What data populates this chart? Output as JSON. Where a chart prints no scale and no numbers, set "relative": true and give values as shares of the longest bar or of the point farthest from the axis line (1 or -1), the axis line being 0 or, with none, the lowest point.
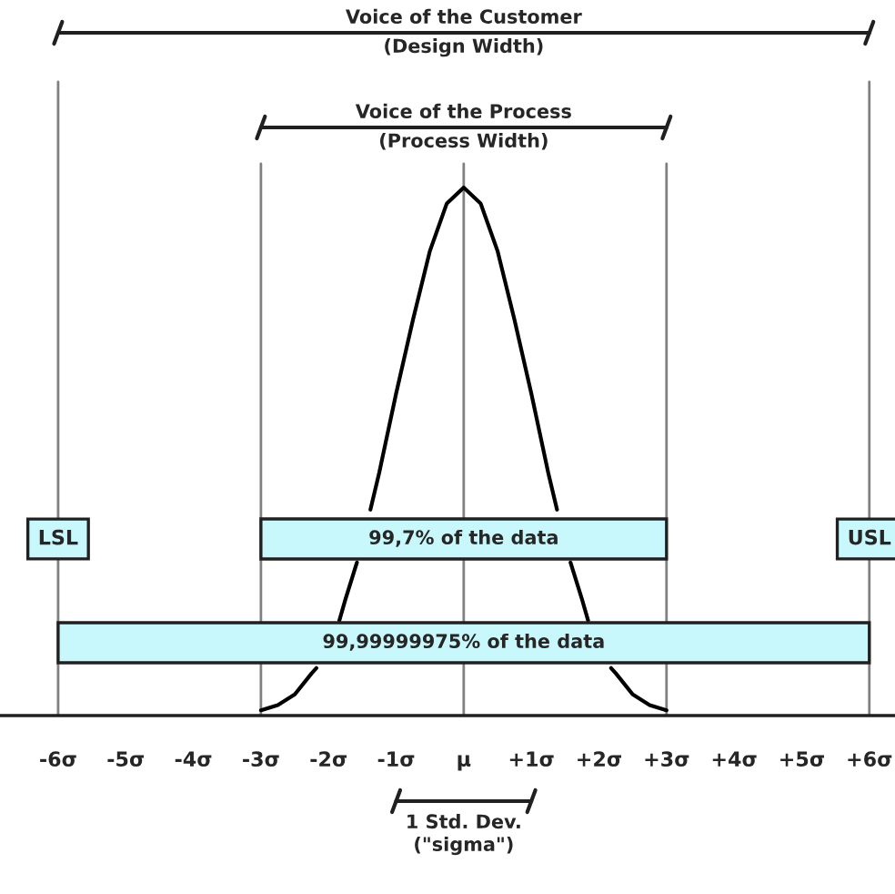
{
  "chart_data": {
    "type": "line",
    "relative": true,
    "x": [
      -3,
      -2.75,
      -2.5,
      -2.25,
      -2.18,
      -2,
      -1.84,
      -1.75,
      -1.58,
      -1.5,
      -1.38,
      -1.25,
      -1,
      -0.75,
      -0.5,
      -0.25,
      0,
      0.25,
      0.5,
      0.75,
      1,
      1.25,
      1.38,
      1.5,
      1.58,
      1.75,
      1.84,
      2,
      2.18,
      2.25,
      2.5,
      2.75,
      3
    ],
    "series": [
      {
        "color": "#000000",
        "values": [
          0.01,
          0.02,
          0.04,
          0.08,
          0.09,
          null,
          0.18,
          0.22,
          0.29,
          null,
          0.39,
          0.46,
          0.61,
          0.75,
          0.88,
          0.97,
          1,
          0.97,
          0.88,
          0.75,
          0.61,
          0.46,
          0.39,
          null,
          0.29,
          0.22,
          0.18,
          null,
          0.09,
          0.08,
          0.04,
          0.02,
          0.01
        ]
      }
    ],
    "xlim": [
      -6.86,
      6.38
    ],
    "xticks": [
      {
        "value": -6,
        "label": "-6σ"
      },
      {
        "value": -5,
        "label": "-5σ"
      },
      {
        "value": -4,
        "label": "-4σ"
      },
      {
        "value": -3,
        "label": "-3σ"
      },
      {
        "value": -2,
        "label": "-2σ"
      },
      {
        "value": -1,
        "label": "-1σ"
      },
      {
        "value": 0,
        "label": "μ"
      },
      {
        "value": 1,
        "label": "+1σ"
      },
      {
        "value": 2,
        "label": "+2σ"
      },
      {
        "value": 3,
        "label": "+3σ"
      },
      {
        "value": 4,
        "label": "+4σ"
      },
      {
        "value": 5,
        "label": "+5σ"
      },
      {
        "value": 6,
        "label": "+6σ"
      }
    ],
    "tick_labels": "x",
    "ref_lines": [
      {
        "axis": "x",
        "value": -6,
        "label": "LSL",
        "color": "#808080"
      },
      {
        "axis": "x",
        "value": -3,
        "color": "#808080"
      },
      {
        "axis": "x",
        "value": 0,
        "color": "#808080"
      },
      {
        "axis": "x",
        "value": 3,
        "color": "#808080"
      },
      {
        "axis": "x",
        "value": 6,
        "label": "USL",
        "color": "#808080"
      }
    ],
    "annotations": [
      "Voice of the Customer\n(Design Width)",
      "Voice of the Process\n(Process Width)",
      "99,7% of the data",
      "99,99999975% of the data",
      "1 Std. Dev.\n(\"sigma\")"
    ],
    "grid": false,
    "marker": "none",
    "line_style": "solid"
  }
}
